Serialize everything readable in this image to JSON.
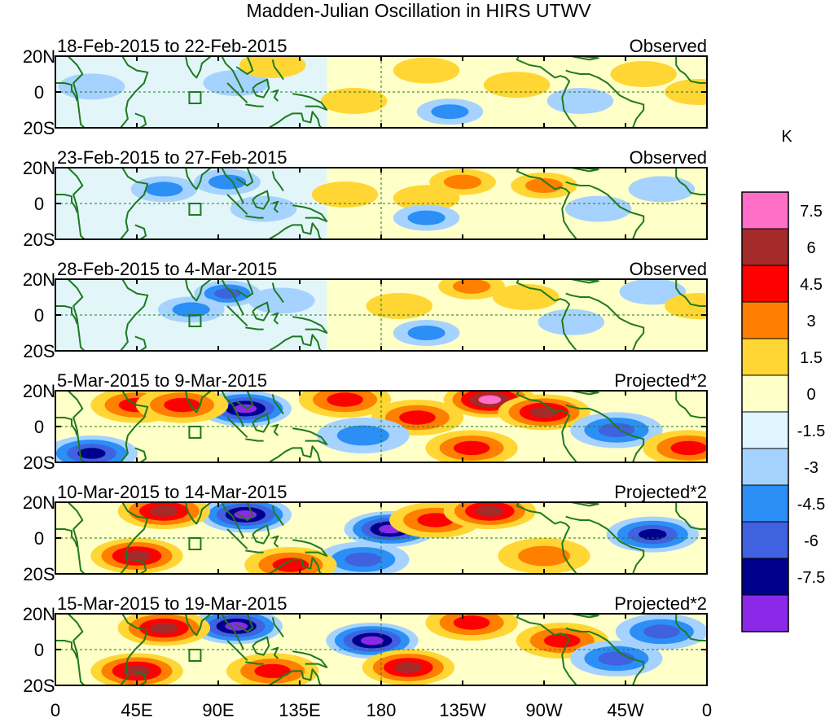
{
  "chart_data": {
    "type": "heatmap",
    "title": "Madden-Julian Oscillation in HIRS UTWV",
    "xticks": [
      "0",
      "45E",
      "90E",
      "135E",
      "180",
      "135W",
      "90W",
      "45W",
      "0"
    ],
    "yticks": [
      "20N",
      "0",
      "20S"
    ],
    "xlim": [
      0,
      360
    ],
    "ylim": [
      -20,
      20
    ],
    "colorbar": {
      "unit": "K",
      "tick_labels": [
        "7.5",
        "6",
        "4.5",
        "3",
        "1.5",
        "0",
        "-1.5",
        "-3",
        "-4.5",
        "-6",
        "-7.5"
      ],
      "bins": [
        {
          "range": [
            7.5,
            9
          ],
          "color": "#ff6ec7"
        },
        {
          "range": [
            6,
            7.5
          ],
          "color": "#a52a2a"
        },
        {
          "range": [
            4.5,
            6
          ],
          "color": "#ff0000"
        },
        {
          "range": [
            3,
            4.5
          ],
          "color": "#ff7f00"
        },
        {
          "range": [
            1.5,
            3
          ],
          "color": "#ffd633"
        },
        {
          "range": [
            0,
            1.5
          ],
          "color": "#ffffc8"
        },
        {
          "range": [
            -1.5,
            0
          ],
          "color": "#dff5ff"
        },
        {
          "range": [
            -3,
            -1.5
          ],
          "color": "#a6d2ff"
        },
        {
          "range": [
            -4.5,
            -3
          ],
          "color": "#2b8ff5"
        },
        {
          "range": [
            -6,
            -4.5
          ],
          "color": "#4061e0"
        },
        {
          "range": [
            -7.5,
            -6
          ],
          "color": "#00008c"
        },
        {
          "range": [
            -9,
            -7.5
          ],
          "color": "#8c29e8"
        }
      ]
    },
    "panels": [
      {
        "date_range": "18-Feb-2015 to 22-Feb-2015",
        "kind": "Observed",
        "anomalies": [
          {
            "lon": 20,
            "lat": 3,
            "value": -0.8
          },
          {
            "lon": 100,
            "lat": 5,
            "value": -1.0
          },
          {
            "lon": 120,
            "lat": 15,
            "value": 1.0
          },
          {
            "lon": 165,
            "lat": -5,
            "value": 0.8
          },
          {
            "lon": 205,
            "lat": 12,
            "value": 1.0
          },
          {
            "lon": 218,
            "lat": -11,
            "value": -2.0
          },
          {
            "lon": 255,
            "lat": 4,
            "value": 0.8
          },
          {
            "lon": 290,
            "lat": -5,
            "value": -0.8
          },
          {
            "lon": 325,
            "lat": 10,
            "value": 0.8
          },
          {
            "lon": 355,
            "lat": 0,
            "value": 1.0
          }
        ]
      },
      {
        "date_range": "23-Feb-2015 to 27-Feb-2015",
        "kind": "Observed",
        "anomalies": [
          {
            "lon": 60,
            "lat": 8,
            "value": -1.8
          },
          {
            "lon": 95,
            "lat": 12,
            "value": -1.8
          },
          {
            "lon": 115,
            "lat": -3,
            "value": -0.8
          },
          {
            "lon": 160,
            "lat": 5,
            "value": 0.8
          },
          {
            "lon": 205,
            "lat": 3,
            "value": 1.0
          },
          {
            "lon": 225,
            "lat": 12,
            "value": 2.0
          },
          {
            "lon": 205,
            "lat": -8,
            "value": -1.6
          },
          {
            "lon": 270,
            "lat": 10,
            "value": 2.0
          },
          {
            "lon": 300,
            "lat": -3,
            "value": -1.0
          },
          {
            "lon": 335,
            "lat": 8,
            "value": -1.0
          }
        ]
      },
      {
        "date_range": "28-Feb-2015 to 4-Mar-2015",
        "kind": "Observed",
        "anomalies": [
          {
            "lon": 95,
            "lat": 12,
            "value": -3.2
          },
          {
            "lon": 75,
            "lat": 3,
            "value": -1.8
          },
          {
            "lon": 125,
            "lat": 8,
            "value": -1.0
          },
          {
            "lon": 190,
            "lat": 5,
            "value": 1.0
          },
          {
            "lon": 230,
            "lat": 16,
            "value": 2.0
          },
          {
            "lon": 205,
            "lat": -10,
            "value": -1.8
          },
          {
            "lon": 260,
            "lat": 10,
            "value": 1.0
          },
          {
            "lon": 285,
            "lat": -4,
            "value": -1.2
          },
          {
            "lon": 330,
            "lat": 13,
            "value": -1.0
          },
          {
            "lon": 355,
            "lat": 5,
            "value": 1.0
          }
        ]
      },
      {
        "date_range": "5-Mar-2015 to 9-Mar-2015",
        "kind": "Projected*2",
        "anomalies": [
          {
            "lon": 105,
            "lat": 10,
            "value": -7.8
          },
          {
            "lon": 45,
            "lat": 12,
            "value": 4.0
          },
          {
            "lon": 70,
            "lat": 12,
            "value": 3.0
          },
          {
            "lon": 160,
            "lat": 15,
            "value": 3.0
          },
          {
            "lon": 200,
            "lat": 5,
            "value": 4.0
          },
          {
            "lon": 240,
            "lat": 15,
            "value": 6.5
          },
          {
            "lon": 270,
            "lat": 8,
            "value": 4.5
          },
          {
            "lon": 20,
            "lat": -15,
            "value": -4.5
          },
          {
            "lon": 170,
            "lat": -5,
            "value": -2.5
          },
          {
            "lon": 310,
            "lat": -2,
            "value": -3.5
          },
          {
            "lon": 230,
            "lat": -12,
            "value": 3.0
          },
          {
            "lon": 350,
            "lat": -12,
            "value": 3.0
          }
        ]
      },
      {
        "date_range": "10-Mar-2015 to 14-Mar-2015",
        "kind": "Projected*2",
        "anomalies": [
          {
            "lon": 105,
            "lat": 13,
            "value": -7.8
          },
          {
            "lon": 60,
            "lat": 15,
            "value": 4.5
          },
          {
            "lon": 45,
            "lat": -10,
            "value": 4.5
          },
          {
            "lon": 185,
            "lat": 5,
            "value": -6.0
          },
          {
            "lon": 210,
            "lat": 10,
            "value": 3.0
          },
          {
            "lon": 240,
            "lat": 15,
            "value": 5.0
          },
          {
            "lon": 170,
            "lat": -12,
            "value": -3.5
          },
          {
            "lon": 130,
            "lat": -15,
            "value": 3.0
          },
          {
            "lon": 270,
            "lat": -10,
            "value": 2.5
          },
          {
            "lon": 330,
            "lat": 2,
            "value": -4.5
          }
        ]
      },
      {
        "date_range": "15-Mar-2015 to 19-Mar-2015",
        "kind": "Projected*2",
        "anomalies": [
          {
            "lon": 100,
            "lat": 13,
            "value": -7.0
          },
          {
            "lon": 60,
            "lat": 12,
            "value": 4.5
          },
          {
            "lon": 45,
            "lat": -12,
            "value": 4.5
          },
          {
            "lon": 175,
            "lat": 5,
            "value": -6.0
          },
          {
            "lon": 195,
            "lat": -10,
            "value": 5.0
          },
          {
            "lon": 230,
            "lat": 15,
            "value": 4.0
          },
          {
            "lon": 280,
            "lat": 5,
            "value": 3.0
          },
          {
            "lon": 310,
            "lat": -5,
            "value": -3.0
          },
          {
            "lon": 335,
            "lat": 10,
            "value": -3.5
          },
          {
            "lon": 120,
            "lat": -12,
            "value": 3.0
          }
        ]
      }
    ]
  }
}
